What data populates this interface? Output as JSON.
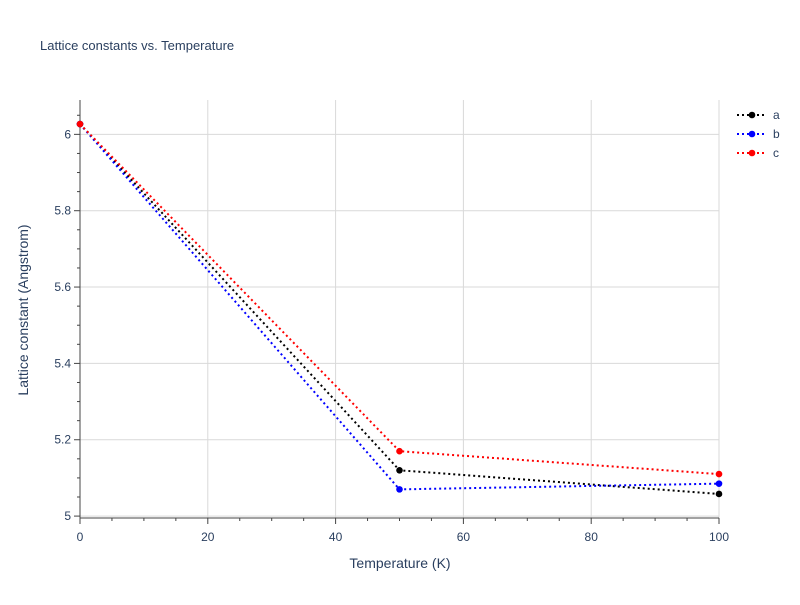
{
  "chart_data": {
    "type": "line",
    "title": "Lattice constants vs. Temperature",
    "xlabel": "Temperature (K)",
    "ylabel": "Lattice constant (Angstrom)",
    "xlim": [
      0,
      100
    ],
    "ylim": [
      4.995,
      6.09
    ],
    "x_ticks": [
      0,
      20,
      40,
      60,
      80,
      100
    ],
    "y_ticks": [
      5,
      5.2,
      5.4,
      5.6,
      5.8,
      6
    ],
    "x_tick_labels": [
      "0",
      "20",
      "40",
      "60",
      "80",
      "100"
    ],
    "y_tick_labels": [
      "5",
      "5.2",
      "5.4",
      "5.6",
      "5.8",
      "6"
    ],
    "grid": true,
    "legend_position": "top-right",
    "line_style": "dotted",
    "markers": true,
    "x": [
      0,
      50,
      100
    ],
    "series": [
      {
        "name": "a",
        "color": "#000000",
        "values": [
          6.027,
          5.12,
          5.058
        ]
      },
      {
        "name": "b",
        "color": "#0000ff",
        "values": [
          6.027,
          5.07,
          5.085
        ]
      },
      {
        "name": "c",
        "color": "#ff0000",
        "values": [
          6.027,
          5.17,
          5.11
        ]
      }
    ]
  }
}
